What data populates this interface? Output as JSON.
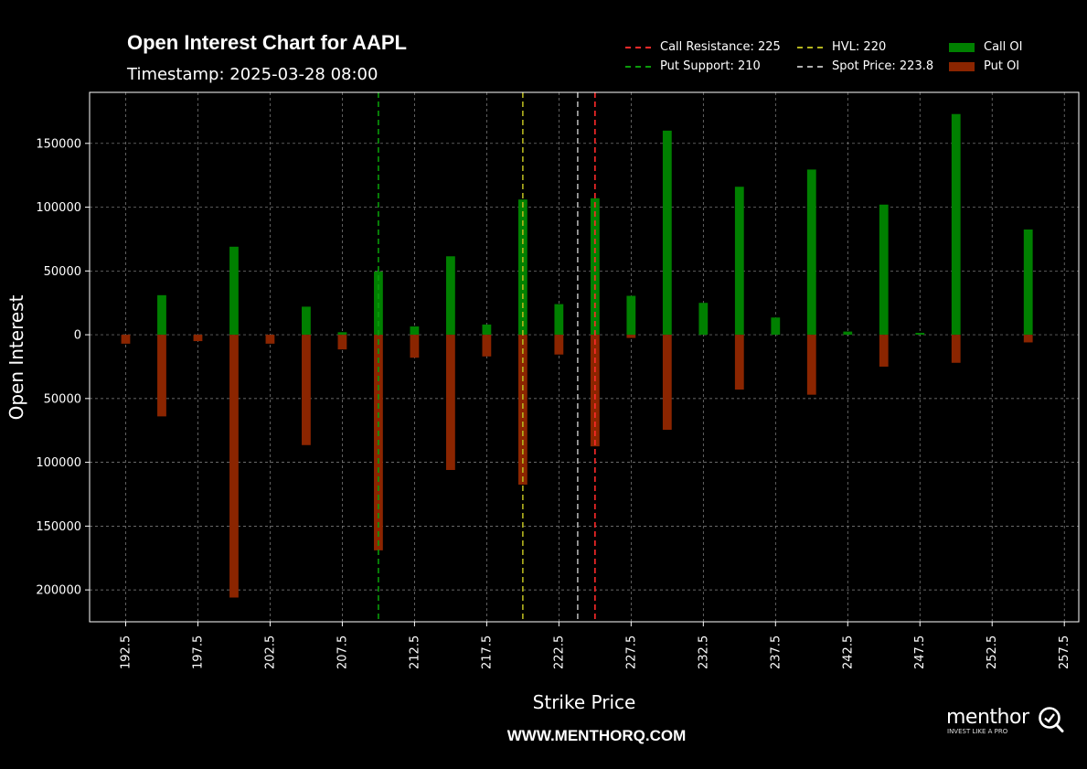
{
  "header": {
    "title": "Open Interest Chart for AAPL",
    "timestamp": "Timestamp: 2025-03-28 08:00"
  },
  "legend": {
    "call_resistance": "Call Resistance: 225",
    "put_support": "Put Support: 210",
    "hvl": "HVL: 220",
    "spot_price": "Spot Price: 223.8",
    "call_oi": "Call OI",
    "put_oi": "Put OI"
  },
  "footer": {
    "website": "WWW.MENTHORQ.COM",
    "logo_text": "menthor",
    "logo_tagline": "INVEST LIKE A PRO",
    "logo_icon": "q-magnifier-icon"
  },
  "colors": {
    "background": "#000000",
    "call": "#008000",
    "put": "#8B2500",
    "call_resistance": "#ff2a2a",
    "put_support": "#0a9a0a",
    "hvl": "#b5b51e",
    "spot_price": "#b0b0b0",
    "grid": "#8a8a8a"
  },
  "chart_data": {
    "type": "bar",
    "title": "Open Interest Chart for AAPL",
    "xlabel": "Strike Price",
    "ylabel": "Open Interest",
    "xlim": [
      190,
      258.5
    ],
    "ylim": [
      -225000,
      190000
    ],
    "x_ticks": [
      192.5,
      197.5,
      202.5,
      207.5,
      212.5,
      217.5,
      222.5,
      227.5,
      232.5,
      237.5,
      242.5,
      247.5,
      252.5,
      257.5
    ],
    "x_tick_labels": [
      "192.5",
      "197.5",
      "202.5",
      "207.5",
      "212.5",
      "217.5",
      "222.5",
      "227.5",
      "232.5",
      "237.5",
      "242.5",
      "247.5",
      "252.5",
      "257.5"
    ],
    "y_ticks": [
      150000,
      100000,
      50000,
      0,
      -50000,
      -100000,
      -150000,
      -200000
    ],
    "y_tick_labels": [
      "150000",
      "100000",
      "50000",
      "0",
      "50000",
      "100000",
      "150000",
      "200000"
    ],
    "grid": true,
    "legend_position": "top-right",
    "strikes": [
      192.5,
      195,
      197.5,
      200,
      202.5,
      205,
      207.5,
      210,
      212.5,
      215,
      217.5,
      220,
      222.5,
      225,
      227.5,
      230,
      232.5,
      235,
      237.5,
      240,
      242.5,
      245,
      247.5,
      250,
      255
    ],
    "series": [
      {
        "name": "Call OI",
        "values": [
          0,
          31000,
          0,
          69000,
          0,
          22000,
          2000,
          49500,
          6500,
          61500,
          8000,
          106000,
          24000,
          107000,
          30500,
          160000,
          25000,
          116000,
          13500,
          129500,
          2500,
          102000,
          1500,
          173000,
          82500
        ]
      },
      {
        "name": "Put OI",
        "values": [
          -7000,
          -64000,
          -5000,
          -206000,
          -7000,
          -86500,
          -11500,
          -169000,
          -18000,
          -106000,
          -17000,
          -117500,
          -15500,
          -87500,
          -2500,
          -74500,
          0,
          -43000,
          0,
          -47000,
          0,
          -25000,
          0,
          -22000,
          -6000
        ]
      }
    ],
    "reference_lines": [
      {
        "name": "Call Resistance: 225",
        "x": 225
      },
      {
        "name": "Put Support: 210",
        "x": 210
      },
      {
        "name": "HVL: 220",
        "x": 220
      },
      {
        "name": "Spot Price: 223.8",
        "x": 223.8
      }
    ]
  }
}
